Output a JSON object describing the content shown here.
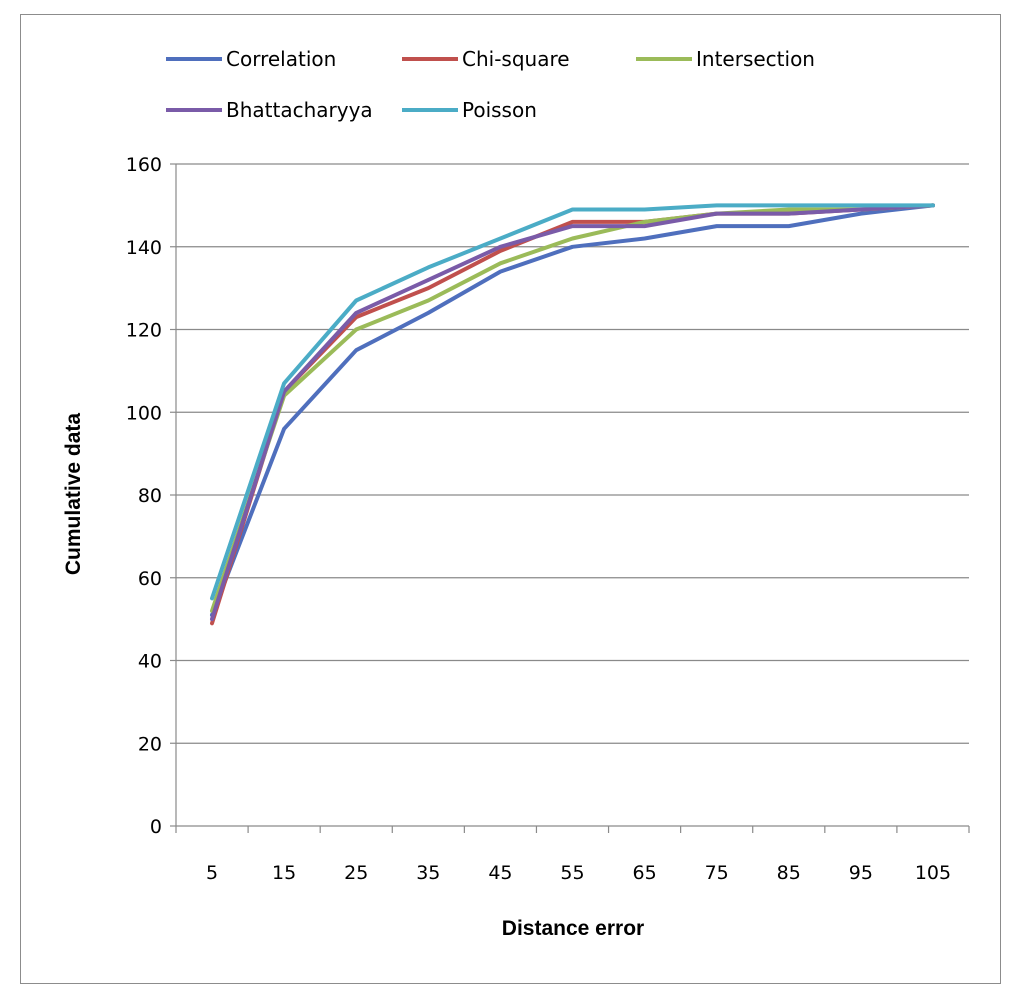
{
  "chart_data": {
    "type": "line",
    "title": "",
    "xlabel": "Distance error",
    "ylabel": "Cumulative data",
    "categories": [
      "5",
      "15",
      "25",
      "35",
      "45",
      "55",
      "65",
      "75",
      "85",
      "95",
      "105"
    ],
    "ylim": [
      0,
      160
    ],
    "yticks": [
      "0",
      "20",
      "40",
      "60",
      "80",
      "100",
      "120",
      "140",
      "160"
    ],
    "grid": "horizontal",
    "legend_position": "top",
    "series": [
      {
        "name": "Correlation",
        "color": "#4f6fbd",
        "values": [
          51,
          96,
          115,
          124,
          134,
          140,
          142,
          145,
          145,
          148,
          150
        ]
      },
      {
        "name": "Chi-square",
        "color": "#c0504d",
        "values": [
          49,
          105,
          123,
          130,
          139,
          146,
          146,
          148,
          148,
          149,
          150
        ]
      },
      {
        "name": "Intersection",
        "color": "#9bbb59",
        "values": [
          52,
          104,
          120,
          127,
          136,
          142,
          146,
          148,
          149,
          149,
          150
        ]
      },
      {
        "name": "Bhattacharyya",
        "color": "#7a5ba8",
        "values": [
          50,
          105,
          124,
          132,
          140,
          145,
          145,
          148,
          148,
          149,
          150
        ]
      },
      {
        "name": "Poisson",
        "color": "#4bacc6",
        "values": [
          55,
          107,
          127,
          135,
          142,
          149,
          149,
          150,
          150,
          150,
          150
        ]
      }
    ]
  }
}
